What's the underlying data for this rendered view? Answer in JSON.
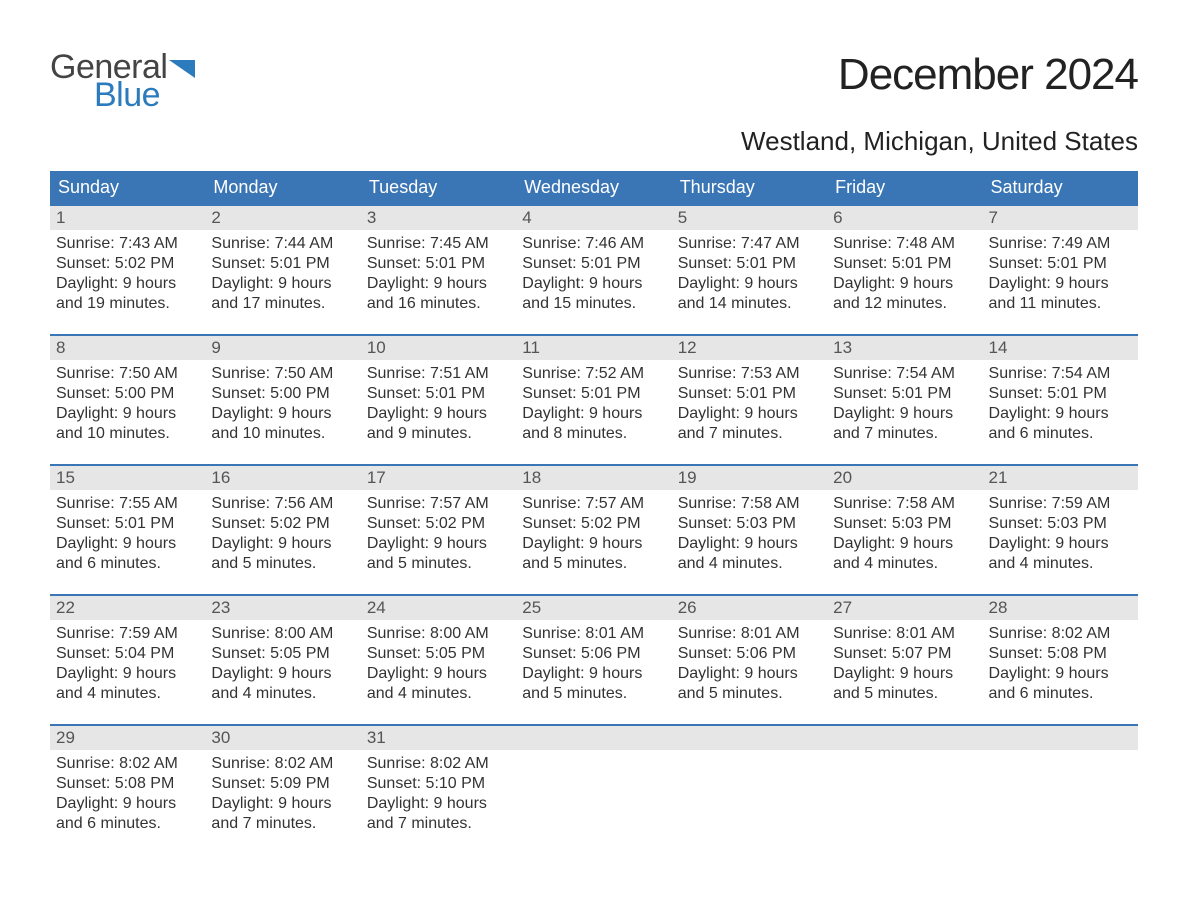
{
  "logo": {
    "top": "General",
    "bottom": "Blue",
    "flag_color": "#2b7bbd"
  },
  "title": "December 2024",
  "location": "Westland, Michigan, United States",
  "colors": {
    "header_bg": "#3a76b5",
    "header_text": "#ffffff",
    "daynum_bg": "#e6e6e6",
    "week_border": "#3a76b5",
    "body_text": "#333333"
  },
  "day_headers": [
    "Sunday",
    "Monday",
    "Tuesday",
    "Wednesday",
    "Thursday",
    "Friday",
    "Saturday"
  ],
  "weeks": [
    [
      {
        "n": "1",
        "sr": "Sunrise: 7:43 AM",
        "ss": "Sunset: 5:02 PM",
        "d1": "Daylight: 9 hours",
        "d2": "and 19 minutes."
      },
      {
        "n": "2",
        "sr": "Sunrise: 7:44 AM",
        "ss": "Sunset: 5:01 PM",
        "d1": "Daylight: 9 hours",
        "d2": "and 17 minutes."
      },
      {
        "n": "3",
        "sr": "Sunrise: 7:45 AM",
        "ss": "Sunset: 5:01 PM",
        "d1": "Daylight: 9 hours",
        "d2": "and 16 minutes."
      },
      {
        "n": "4",
        "sr": "Sunrise: 7:46 AM",
        "ss": "Sunset: 5:01 PM",
        "d1": "Daylight: 9 hours",
        "d2": "and 15 minutes."
      },
      {
        "n": "5",
        "sr": "Sunrise: 7:47 AM",
        "ss": "Sunset: 5:01 PM",
        "d1": "Daylight: 9 hours",
        "d2": "and 14 minutes."
      },
      {
        "n": "6",
        "sr": "Sunrise: 7:48 AM",
        "ss": "Sunset: 5:01 PM",
        "d1": "Daylight: 9 hours",
        "d2": "and 12 minutes."
      },
      {
        "n": "7",
        "sr": "Sunrise: 7:49 AM",
        "ss": "Sunset: 5:01 PM",
        "d1": "Daylight: 9 hours",
        "d2": "and 11 minutes."
      }
    ],
    [
      {
        "n": "8",
        "sr": "Sunrise: 7:50 AM",
        "ss": "Sunset: 5:00 PM",
        "d1": "Daylight: 9 hours",
        "d2": "and 10 minutes."
      },
      {
        "n": "9",
        "sr": "Sunrise: 7:50 AM",
        "ss": "Sunset: 5:00 PM",
        "d1": "Daylight: 9 hours",
        "d2": "and 10 minutes."
      },
      {
        "n": "10",
        "sr": "Sunrise: 7:51 AM",
        "ss": "Sunset: 5:01 PM",
        "d1": "Daylight: 9 hours",
        "d2": "and 9 minutes."
      },
      {
        "n": "11",
        "sr": "Sunrise: 7:52 AM",
        "ss": "Sunset: 5:01 PM",
        "d1": "Daylight: 9 hours",
        "d2": "and 8 minutes."
      },
      {
        "n": "12",
        "sr": "Sunrise: 7:53 AM",
        "ss": "Sunset: 5:01 PM",
        "d1": "Daylight: 9 hours",
        "d2": "and 7 minutes."
      },
      {
        "n": "13",
        "sr": "Sunrise: 7:54 AM",
        "ss": "Sunset: 5:01 PM",
        "d1": "Daylight: 9 hours",
        "d2": "and 7 minutes."
      },
      {
        "n": "14",
        "sr": "Sunrise: 7:54 AM",
        "ss": "Sunset: 5:01 PM",
        "d1": "Daylight: 9 hours",
        "d2": "and 6 minutes."
      }
    ],
    [
      {
        "n": "15",
        "sr": "Sunrise: 7:55 AM",
        "ss": "Sunset: 5:01 PM",
        "d1": "Daylight: 9 hours",
        "d2": "and 6 minutes."
      },
      {
        "n": "16",
        "sr": "Sunrise: 7:56 AM",
        "ss": "Sunset: 5:02 PM",
        "d1": "Daylight: 9 hours",
        "d2": "and 5 minutes."
      },
      {
        "n": "17",
        "sr": "Sunrise: 7:57 AM",
        "ss": "Sunset: 5:02 PM",
        "d1": "Daylight: 9 hours",
        "d2": "and 5 minutes."
      },
      {
        "n": "18",
        "sr": "Sunrise: 7:57 AM",
        "ss": "Sunset: 5:02 PM",
        "d1": "Daylight: 9 hours",
        "d2": "and 5 minutes."
      },
      {
        "n": "19",
        "sr": "Sunrise: 7:58 AM",
        "ss": "Sunset: 5:03 PM",
        "d1": "Daylight: 9 hours",
        "d2": "and 4 minutes."
      },
      {
        "n": "20",
        "sr": "Sunrise: 7:58 AM",
        "ss": "Sunset: 5:03 PM",
        "d1": "Daylight: 9 hours",
        "d2": "and 4 minutes."
      },
      {
        "n": "21",
        "sr": "Sunrise: 7:59 AM",
        "ss": "Sunset: 5:03 PM",
        "d1": "Daylight: 9 hours",
        "d2": "and 4 minutes."
      }
    ],
    [
      {
        "n": "22",
        "sr": "Sunrise: 7:59 AM",
        "ss": "Sunset: 5:04 PM",
        "d1": "Daylight: 9 hours",
        "d2": "and 4 minutes."
      },
      {
        "n": "23",
        "sr": "Sunrise: 8:00 AM",
        "ss": "Sunset: 5:05 PM",
        "d1": "Daylight: 9 hours",
        "d2": "and 4 minutes."
      },
      {
        "n": "24",
        "sr": "Sunrise: 8:00 AM",
        "ss": "Sunset: 5:05 PM",
        "d1": "Daylight: 9 hours",
        "d2": "and 4 minutes."
      },
      {
        "n": "25",
        "sr": "Sunrise: 8:01 AM",
        "ss": "Sunset: 5:06 PM",
        "d1": "Daylight: 9 hours",
        "d2": "and 5 minutes."
      },
      {
        "n": "26",
        "sr": "Sunrise: 8:01 AM",
        "ss": "Sunset: 5:06 PM",
        "d1": "Daylight: 9 hours",
        "d2": "and 5 minutes."
      },
      {
        "n": "27",
        "sr": "Sunrise: 8:01 AM",
        "ss": "Sunset: 5:07 PM",
        "d1": "Daylight: 9 hours",
        "d2": "and 5 minutes."
      },
      {
        "n": "28",
        "sr": "Sunrise: 8:02 AM",
        "ss": "Sunset: 5:08 PM",
        "d1": "Daylight: 9 hours",
        "d2": "and 6 minutes."
      }
    ],
    [
      {
        "n": "29",
        "sr": "Sunrise: 8:02 AM",
        "ss": "Sunset: 5:08 PM",
        "d1": "Daylight: 9 hours",
        "d2": "and 6 minutes."
      },
      {
        "n": "30",
        "sr": "Sunrise: 8:02 AM",
        "ss": "Sunset: 5:09 PM",
        "d1": "Daylight: 9 hours",
        "d2": "and 7 minutes."
      },
      {
        "n": "31",
        "sr": "Sunrise: 8:02 AM",
        "ss": "Sunset: 5:10 PM",
        "d1": "Daylight: 9 hours",
        "d2": "and 7 minutes."
      },
      null,
      null,
      null,
      null
    ]
  ]
}
